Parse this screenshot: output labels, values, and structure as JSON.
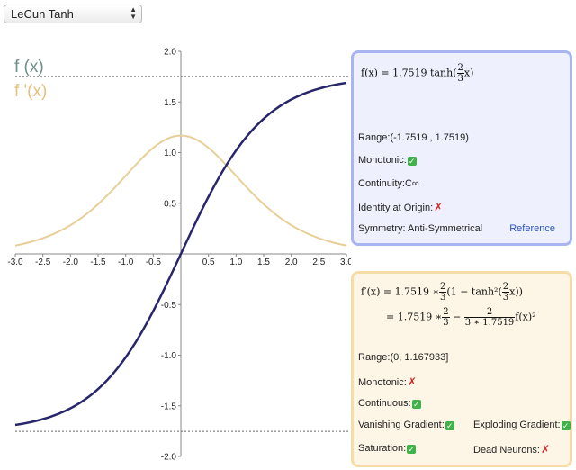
{
  "dropdown": {
    "selected": "LeCun Tanh"
  },
  "legend": {
    "f": "f (x)",
    "df": "f '(x)"
  },
  "colors": {
    "f_curve": "#27266b",
    "df_curve": "#e8cf98",
    "axis": "#888888",
    "dashed": "#666666"
  },
  "chart_data": {
    "type": "line",
    "x_ticks": [
      "-3.0",
      "-2.5",
      "-2.0",
      "-1.5",
      "-1.0",
      "-0.5",
      "0.5",
      "1.0",
      "1.5",
      "2.0",
      "2.5",
      "3.0"
    ],
    "y_ticks": [
      "2.0",
      "1.5",
      "1.0",
      "0.5",
      "-0.5",
      "-1.0",
      "-1.5",
      "-2.0"
    ],
    "xlim": [
      -3,
      3
    ],
    "ylim": [
      -2,
      2
    ],
    "dashed_levels": [
      1.7519,
      -1.7519
    ],
    "series": [
      {
        "name": "f (x)",
        "formula": "1.7519*tanh(2x/3)"
      },
      {
        "name": "f '(x)",
        "formula": "1.7519*(2/3)*(1-tanh^2(2x/3))"
      }
    ]
  },
  "function_panel": {
    "formula": {
      "lhs": "f(x) = 1.7519 tanh(",
      "num": "2",
      "den": "3",
      "rhs": "x)"
    },
    "range_label": "Range:(-1.7519 , 1.7519)",
    "monotonic_label": "Monotonic:",
    "continuity_label": "Continuity:C∞",
    "identity_label": "Identity at Origin:",
    "symmetry_label": "Symmetry: Anti-Symmetrical",
    "reference_link": "Reference"
  },
  "derivative_panel": {
    "formula_line1": {
      "lhs": "f′(x) = 1.7519 ∗",
      "num1": "2",
      "den1": "3",
      "mid": "(1 − tanh²(",
      "num2": "2",
      "den2": "3",
      "rhs": "x))"
    },
    "formula_line2": {
      "lhs": "= 1.7519 ∗",
      "num1": "2",
      "den1": "3",
      "minus": "−",
      "num2": "2",
      "den2": "3 ∗ 1.7519",
      "rhs": "f(x)²"
    },
    "range_label": "Range:(0, 1.167933]",
    "monotonic_label": "Monotonic:",
    "continuous_label": "Continuous:",
    "vanishing_label": "Vanishing Gradient:",
    "exploding_label": "Exploding Gradient:",
    "saturation_label": "Saturation:",
    "dead_neurons_label": "Dead Neurons:"
  }
}
